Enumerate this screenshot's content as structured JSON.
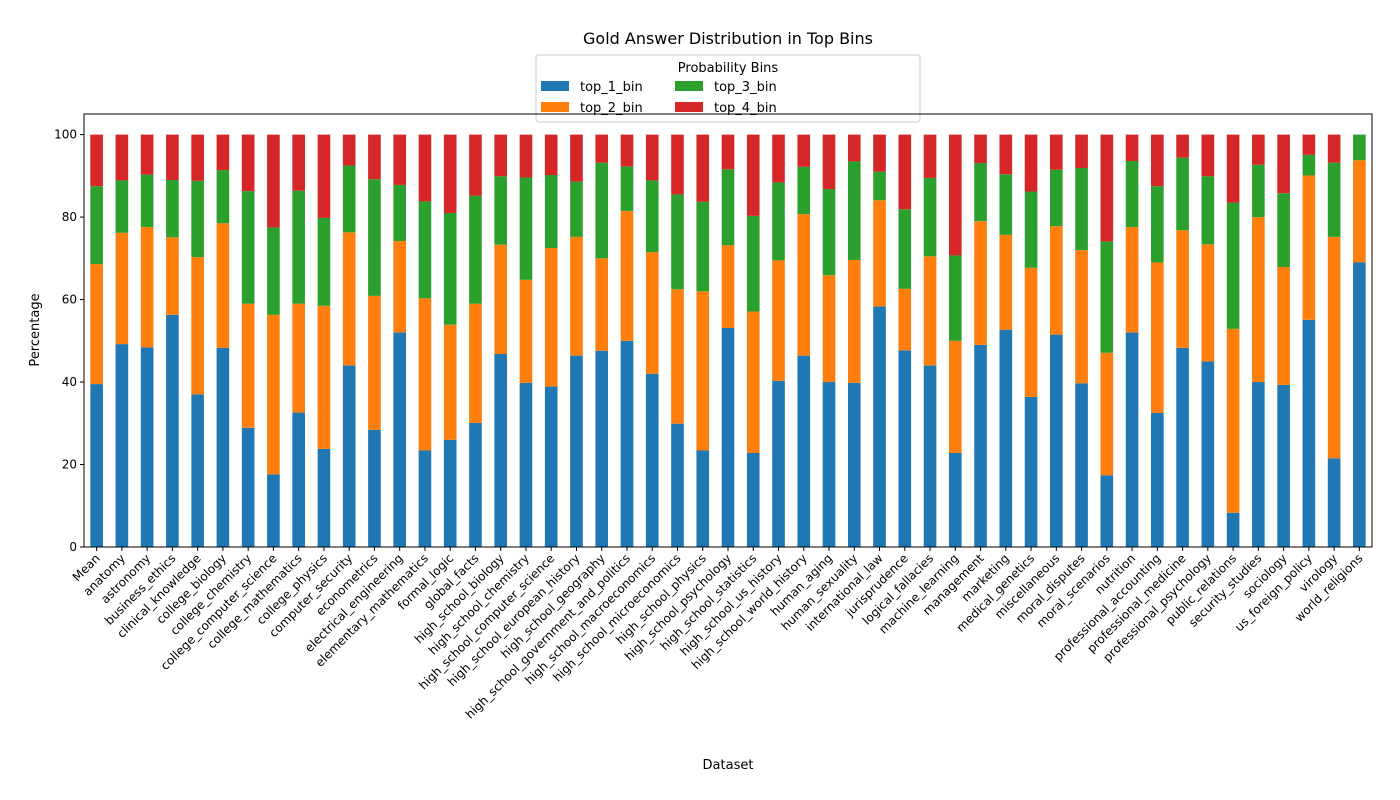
{
  "chart_data": {
    "type": "bar",
    "stacked": true,
    "title": "Gold Answer Distribution in Top Bins",
    "xlabel": "Dataset",
    "ylabel": "Percentage",
    "ylim": [
      0,
      105
    ],
    "yticks": [
      0,
      20,
      40,
      60,
      80,
      100
    ],
    "grid": false,
    "legend": {
      "title": "Probability Bins",
      "placement": "top-center"
    },
    "categories": [
      "Mean",
      "anatomy",
      "astronomy",
      "business_ethics",
      "clinical_knowledge",
      "college_biology",
      "college_chemistry",
      "college_computer_science",
      "college_mathematics",
      "college_physics",
      "computer_security",
      "econometrics",
      "electrical_engineering",
      "elementary_mathematics",
      "formal_logic",
      "global_facts",
      "high_school_biology",
      "high_school_chemistry",
      "high_school_computer_science",
      "high_school_european_history",
      "high_school_geography",
      "high_school_government_and_politics",
      "high_school_macroeconomics",
      "high_school_microeconomics",
      "high_school_physics",
      "high_school_psychology",
      "high_school_statistics",
      "high_school_us_history",
      "high_school_world_history",
      "human_aging",
      "human_sexuality",
      "international_law",
      "jurisprudence",
      "logical_fallacies",
      "machine_learning",
      "management",
      "marketing",
      "medical_genetics",
      "miscellaneous",
      "moral_disputes",
      "moral_scenarios",
      "nutrition",
      "professional_accounting",
      "professional_medicine",
      "professional_psychology",
      "public_relations",
      "security_studies",
      "sociology",
      "us_foreign_policy",
      "virology",
      "world_religions"
    ],
    "series": [
      {
        "name": "top_1_bin",
        "color": "#1f77b4",
        "values": [
          39.5,
          49.2,
          48.4,
          56.3,
          37.0,
          48.3,
          28.9,
          17.6,
          32.6,
          23.8,
          44.0,
          28.4,
          52.0,
          23.4,
          26.0,
          30.1,
          46.8,
          39.8,
          38.9,
          46.4,
          47.6,
          50.0,
          42.0,
          29.9,
          23.4,
          53.1,
          22.8,
          40.3,
          46.4,
          40.0,
          39.8,
          58.3,
          47.7,
          44.0,
          22.8,
          49.0,
          52.7,
          36.4,
          51.5,
          39.7,
          17.4,
          52.0,
          32.5,
          48.3,
          45.0,
          8.3,
          40.0,
          39.3,
          55.1,
          21.5,
          69.0
        ]
      },
      {
        "name": "top_2_bin",
        "color": "#ff7f0e",
        "values": [
          29.1,
          27.0,
          29.2,
          18.8,
          33.3,
          30.2,
          30.1,
          38.7,
          26.4,
          34.7,
          32.3,
          32.5,
          22.2,
          36.9,
          27.9,
          28.9,
          26.5,
          25.0,
          33.6,
          28.8,
          22.4,
          31.5,
          29.5,
          32.6,
          38.6,
          20.1,
          34.3,
          29.2,
          34.3,
          25.9,
          29.8,
          25.8,
          14.9,
          26.5,
          27.2,
          30.0,
          23.0,
          31.3,
          26.3,
          32.3,
          29.7,
          25.6,
          36.5,
          28.5,
          28.4,
          44.6,
          40.0,
          28.6,
          35.0,
          53.7,
          24.8
        ]
      },
      {
        "name": "top_3_bin",
        "color": "#2ca02c",
        "values": [
          18.9,
          12.7,
          12.7,
          13.9,
          18.5,
          12.9,
          27.3,
          21.2,
          27.4,
          21.3,
          16.2,
          28.3,
          13.6,
          23.5,
          27.1,
          26.2,
          16.6,
          24.8,
          17.7,
          13.4,
          23.2,
          10.8,
          17.4,
          23.0,
          21.7,
          18.4,
          23.2,
          18.9,
          11.5,
          20.9,
          23.9,
          6.9,
          19.3,
          19.0,
          20.7,
          14.1,
          14.7,
          18.5,
          13.7,
          19.9,
          27.0,
          16.0,
          18.5,
          17.6,
          16.5,
          30.6,
          12.7,
          17.9,
          5.0,
          18.0,
          6.2
        ]
      },
      {
        "name": "top_4_bin",
        "color": "#d62728",
        "values": [
          12.5,
          11.1,
          9.7,
          11.0,
          11.2,
          8.6,
          13.7,
          22.5,
          13.6,
          20.2,
          7.5,
          10.8,
          12.2,
          16.2,
          19.0,
          14.8,
          10.1,
          10.4,
          9.8,
          11.4,
          6.8,
          7.7,
          11.1,
          14.5,
          16.3,
          8.4,
          19.7,
          11.6,
          7.8,
          13.2,
          6.5,
          9.0,
          18.1,
          10.5,
          29.3,
          6.9,
          9.6,
          13.8,
          8.5,
          8.1,
          25.9,
          6.4,
          12.5,
          5.6,
          10.1,
          16.5,
          7.3,
          14.2,
          4.9,
          6.8,
          0.0
        ]
      }
    ]
  }
}
